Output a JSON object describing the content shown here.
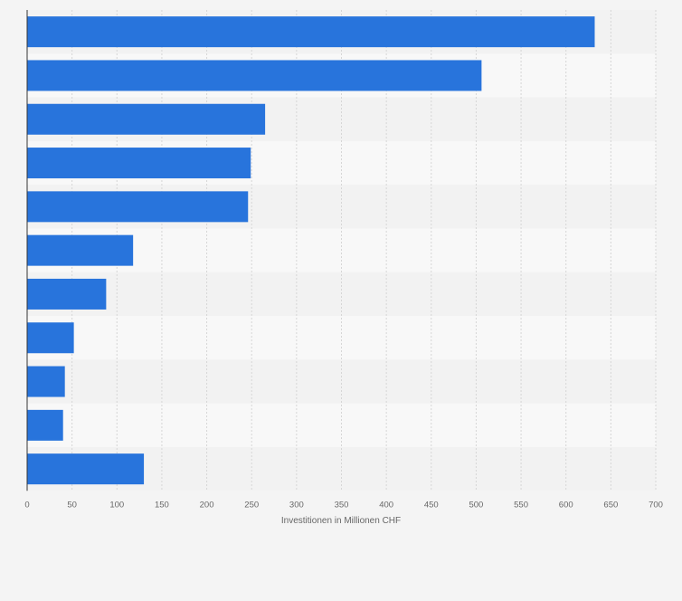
{
  "chart_data": {
    "type": "bar",
    "orientation": "horizontal",
    "categories": [
      "",
      "",
      "",
      "",
      "",
      "",
      "",
      "",
      "",
      "",
      ""
    ],
    "values": [
      632,
      506,
      265,
      249,
      246,
      118,
      88,
      52,
      42,
      40,
      130
    ],
    "title": "",
    "xlabel": "Investitionen in Millionen CHF",
    "ylabel": "",
    "xlim": [
      0,
      700
    ],
    "xticks": [
      0,
      50,
      100,
      150,
      200,
      250,
      300,
      350,
      400,
      450,
      500,
      550,
      600,
      650,
      700
    ],
    "grid": true,
    "bar_color": "#2874dc",
    "band_colors": [
      "#f2f2f2",
      "#f8f8f8"
    ]
  }
}
